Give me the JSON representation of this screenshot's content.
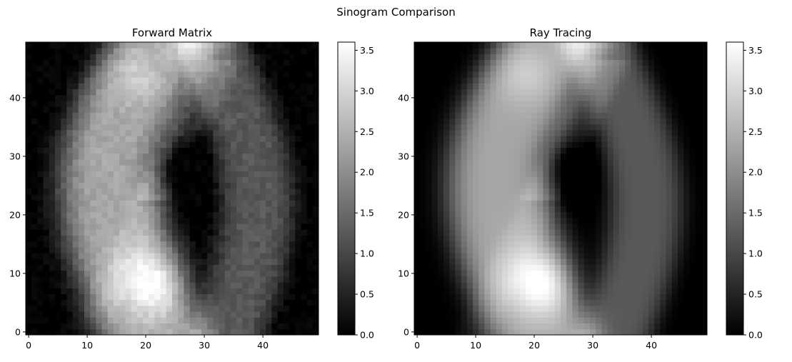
{
  "figure": {
    "suptitle": "Sinogram Comparison"
  },
  "colormap": {
    "name": "gray",
    "low": "#000000",
    "high": "#ffffff",
    "frame": "#000000"
  },
  "chart_data": [
    {
      "type": "heatmap",
      "title": "Forward Matrix",
      "rows": 50,
      "cols": 50,
      "xlim": [
        -0.5,
        49.5
      ],
      "ylim": [
        -0.5,
        49.5
      ],
      "origin": "lower",
      "xticks": [
        0,
        10,
        20,
        30,
        40
      ],
      "yticks": [
        0,
        10,
        20,
        30,
        40
      ],
      "colorbar": {
        "vmin": 0.0,
        "vmax": 3.6,
        "ticks": [
          "0.0",
          "0.5",
          "1.0",
          "1.5",
          "2.0",
          "2.5",
          "3.0",
          "3.5"
        ]
      },
      "noise": 0.05,
      "smooth": false
    },
    {
      "type": "heatmap",
      "title": "Ray Tracing",
      "rows": 50,
      "cols": 50,
      "xlim": [
        -0.5,
        49.5
      ],
      "ylim": [
        -0.5,
        49.5
      ],
      "origin": "lower",
      "xticks": [
        0,
        10,
        20,
        30,
        40
      ],
      "yticks": [
        0,
        10,
        20,
        30,
        40
      ],
      "colorbar": {
        "vmin": 0.0,
        "vmax": 3.6,
        "ticks": [
          "0.0",
          "0.5",
          "1.0",
          "1.5",
          "2.0",
          "2.5",
          "3.0",
          "3.5"
        ]
      },
      "noise": 0.0,
      "smooth": true
    }
  ]
}
